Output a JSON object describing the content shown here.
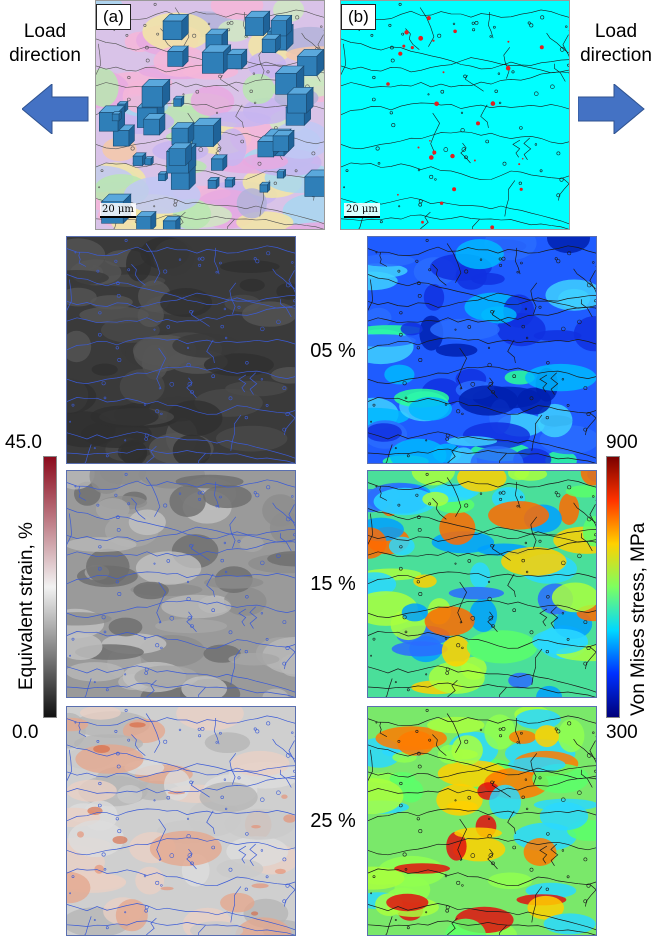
{
  "panel_labels": {
    "a": "(a)",
    "b": "(b)"
  },
  "load_direction": {
    "line1": "Load",
    "line2": "direction"
  },
  "scale_bar": {
    "a": "20 μm",
    "b": "20 μm"
  },
  "strain_levels": [
    "05 %",
    "15 %",
    "25 %"
  ],
  "left_colorbar": {
    "title": "Equivalent strain, %",
    "max": "45.0",
    "min": "0.0",
    "colors": [
      "#8b0a1c",
      "#f2f2f2",
      "#111111"
    ]
  },
  "right_colorbar": {
    "title": "Von Mises stress, MPa",
    "max": "900",
    "min": "300",
    "colors": [
      "#7a0000",
      "#ff3300",
      "#ffd000",
      "#7dff60",
      "#00d8ff",
      "#0030ff",
      "#00007a"
    ]
  },
  "colors": {
    "arrow": "#4472c4",
    "grain_boundary_blue": "#3b5bd6",
    "cyan_map": "#00ffff"
  }
}
